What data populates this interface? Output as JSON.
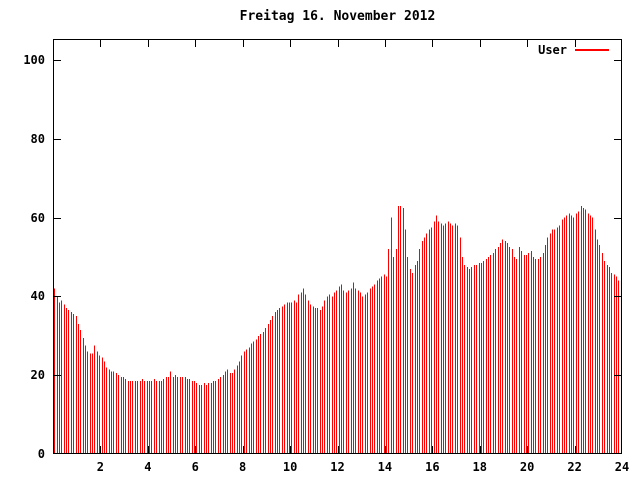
{
  "window": {
    "background": "#ffffff",
    "foreground": "#000000"
  },
  "header": {
    "title": "Freitag 16. November 2012"
  },
  "legend": {
    "items": [
      {
        "label": "User",
        "color": "#ff0000"
      }
    ],
    "position": "top-right-inside"
  },
  "chart_data": {
    "type": "bar",
    "subtype": "impulses",
    "title": "Freitag 16. November 2012",
    "xlabel": "",
    "ylabel": "",
    "x_unit": "hour-of-day",
    "sample_interval_hours": 0.1,
    "first_sample_hour": 0.05,
    "xlim": [
      0,
      24
    ],
    "ylim": [
      0,
      105
    ],
    "x_ticks": [
      2,
      4,
      6,
      8,
      10,
      12,
      14,
      16,
      18,
      20,
      22,
      24
    ],
    "y_ticks": [
      0,
      20,
      40,
      60,
      80,
      100
    ],
    "grid": false,
    "axis_color": "#000000",
    "background_color": "#ffffff",
    "legend_position": "top-right-inside",
    "series": [
      {
        "name": "User",
        "color": "#ff0000",
        "values": [
          42,
          40,
          38.5,
          39,
          38,
          37,
          36.5,
          36,
          35.5,
          35,
          33,
          31.5,
          29.5,
          27.5,
          26,
          25.5,
          25.5,
          27.5,
          26,
          25,
          24.5,
          23.5,
          22,
          21.5,
          21,
          21,
          20.5,
          20,
          19.5,
          19.5,
          19,
          18.5,
          18.5,
          18.5,
          18.5,
          18.5,
          18.5,
          19,
          18.5,
          18.5,
          18.5,
          18.5,
          19,
          18.5,
          18.5,
          18.5,
          19,
          19.5,
          19.5,
          21,
          19.5,
          20,
          19.5,
          19.5,
          19.5,
          19.5,
          19,
          19,
          18.5,
          18.5,
          18,
          17.5,
          17.5,
          18,
          17.5,
          18,
          18,
          18.5,
          18.5,
          19,
          19.5,
          20,
          21,
          21.5,
          20.5,
          20.5,
          21.5,
          22.5,
          23.5,
          25,
          26,
          26.5,
          27,
          28,
          28.5,
          29,
          30,
          30.5,
          31,
          32,
          33,
          34,
          35,
          36,
          36.5,
          37,
          37.5,
          38,
          38.5,
          38.5,
          38.5,
          39,
          38.5,
          40.5,
          41,
          42,
          40.5,
          39,
          38,
          37.5,
          37,
          37,
          36.5,
          37.5,
          39,
          40,
          40.5,
          40,
          41,
          41.5,
          42.5,
          43,
          41.5,
          41,
          41.5,
          42,
          43.5,
          42,
          41.5,
          41,
          40,
          40.5,
          41,
          42,
          42.5,
          43,
          44,
          44.5,
          45,
          45.5,
          45,
          52,
          60,
          50,
          52,
          63,
          63,
          62.5,
          57,
          50,
          47,
          46,
          48,
          49,
          52,
          54,
          55,
          56,
          57,
          57.5,
          59,
          60.5,
          59,
          58.5,
          58,
          58.5,
          59,
          58.5,
          58,
          58.5,
          58,
          55,
          50,
          48,
          47.5,
          47,
          47.5,
          48,
          48,
          48.5,
          48.5,
          49,
          49.5,
          50,
          50.5,
          51,
          52,
          52.5,
          53.5,
          54.5,
          54,
          53.5,
          52.5,
          52,
          50,
          49.5,
          52.5,
          51.5,
          50.5,
          50.5,
          51,
          51.5,
          50,
          49.5,
          49.5,
          50,
          51,
          53,
          55,
          56,
          57,
          57,
          57.5,
          58,
          59.5,
          60,
          60.5,
          61,
          60.5,
          60,
          61,
          61.5,
          63,
          62.5,
          62,
          61,
          60.5,
          60,
          57,
          54.5,
          53,
          51,
          49,
          48,
          47.5,
          46,
          45.5,
          45,
          44,
          43.5
        ]
      }
    ]
  }
}
